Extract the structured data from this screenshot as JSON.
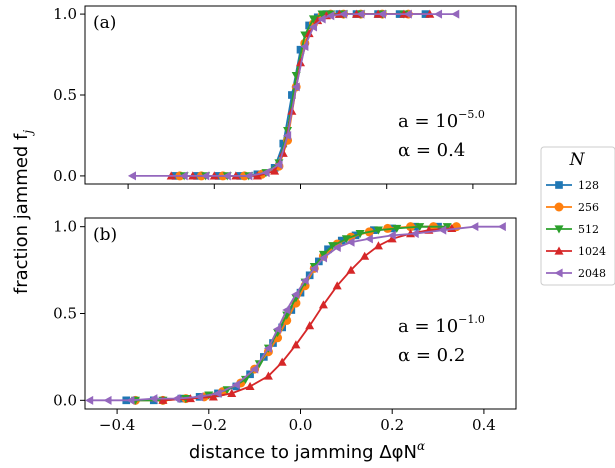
{
  "chart_data": [
    {
      "panel": "(a)",
      "type": "line",
      "xlim": [
        -0.5,
        0.5
      ],
      "ylim": [
        -0.05,
        1.05
      ],
      "yticks": [
        0.0,
        0.5,
        1.0
      ],
      "ytick_labels": [
        "0.0",
        "0.5",
        "1.0"
      ],
      "annotation": {
        "a_prefix": "a = 10",
        "a_exp": "−5.0",
        "alpha": "α = 0.4"
      },
      "series": [
        {
          "name": "128",
          "color": "#1f77b4",
          "marker": "square",
          "x": [
            -0.29,
            -0.24,
            -0.19,
            -0.14,
            -0.1,
            -0.06,
            -0.04,
            -0.02,
            0.0,
            0.02,
            0.04,
            0.06,
            0.09,
            0.13,
            0.18,
            0.23,
            0.29
          ],
          "y": [
            0.0,
            0.0,
            0.0,
            0.0,
            0.01,
            0.05,
            0.2,
            0.5,
            0.78,
            0.93,
            0.98,
            1.0,
            1.0,
            1.0,
            1.0,
            1.0,
            1.0
          ]
        },
        {
          "name": "256",
          "color": "#ff7f0e",
          "marker": "circle",
          "x": [
            -0.28,
            -0.23,
            -0.18,
            -0.13,
            -0.09,
            -0.05,
            -0.03,
            -0.01,
            0.01,
            0.03,
            0.05,
            0.07,
            0.1,
            0.14,
            0.19,
            0.25
          ],
          "y": [
            0.0,
            0.0,
            0.0,
            0.0,
            0.01,
            0.06,
            0.22,
            0.55,
            0.82,
            0.94,
            0.99,
            1.0,
            1.0,
            1.0,
            1.0,
            1.0
          ]
        },
        {
          "name": "512",
          "color": "#2ca02c",
          "marker": "triangle-down",
          "x": [
            -0.27,
            -0.22,
            -0.17,
            -0.12,
            -0.08,
            -0.05,
            -0.03,
            -0.01,
            0.01,
            0.03,
            0.05,
            0.07,
            0.1,
            0.14,
            0.19,
            0.24
          ],
          "y": [
            0.0,
            0.0,
            0.0,
            0.0,
            0.02,
            0.08,
            0.28,
            0.62,
            0.87,
            0.97,
            1.0,
            1.0,
            1.0,
            1.0,
            1.0,
            1.0
          ]
        },
        {
          "name": "1024",
          "color": "#d62728",
          "marker": "triangle-up",
          "x": [
            -0.3,
            -0.25,
            -0.2,
            -0.15,
            -0.1,
            -0.06,
            -0.04,
            -0.02,
            0.0,
            0.02,
            0.04,
            0.06,
            0.09,
            0.13,
            0.18,
            0.24,
            0.3
          ],
          "y": [
            0.0,
            0.0,
            0.0,
            0.0,
            0.0,
            0.03,
            0.14,
            0.4,
            0.7,
            0.88,
            0.96,
            0.99,
            1.0,
            1.0,
            1.0,
            1.0,
            1.0
          ]
        },
        {
          "name": "2048",
          "color": "#9467bd",
          "marker": "triangle-left",
          "x": [
            -0.39,
            -0.27,
            -0.22,
            -0.17,
            -0.12,
            -0.08,
            -0.05,
            -0.03,
            -0.01,
            0.01,
            0.03,
            0.05,
            0.07,
            0.1,
            0.14,
            0.19,
            0.25,
            0.32,
            0.36
          ],
          "y": [
            0.0,
            0.0,
            0.0,
            0.0,
            0.0,
            0.02,
            0.07,
            0.25,
            0.55,
            0.8,
            0.92,
            0.97,
            0.99,
            1.0,
            1.0,
            1.0,
            1.0,
            1.0,
            1.0
          ]
        }
      ]
    },
    {
      "panel": "(b)",
      "type": "line",
      "xlim": [
        -0.47,
        0.47
      ],
      "ylim": [
        -0.05,
        1.05
      ],
      "xticks": [
        -0.4,
        -0.2,
        0.0,
        0.2,
        0.4
      ],
      "xtick_labels": [
        "−0.4",
        "−0.2",
        "0.0",
        "0.2",
        "0.4"
      ],
      "yticks": [
        0.0,
        0.5,
        1.0
      ],
      "ytick_labels": [
        "0.0",
        "0.5",
        "1.0"
      ],
      "annotation": {
        "a_prefix": "a = 10",
        "a_exp": "−1.0",
        "alpha": "α = 0.2"
      },
      "series": [
        {
          "name": "128",
          "color": "#1f77b4",
          "marker": "square",
          "x": [
            -0.38,
            -0.32,
            -0.26,
            -0.22,
            -0.18,
            -0.14,
            -0.11,
            -0.08,
            -0.06,
            -0.04,
            -0.02,
            0.0,
            0.02,
            0.04,
            0.06,
            0.09,
            0.12,
            0.16,
            0.2,
            0.25,
            0.3
          ],
          "y": [
            0.0,
            0.0,
            0.01,
            0.02,
            0.04,
            0.08,
            0.15,
            0.25,
            0.33,
            0.42,
            0.52,
            0.62,
            0.72,
            0.8,
            0.87,
            0.92,
            0.95,
            0.98,
            0.99,
            1.0,
            1.0
          ]
        },
        {
          "name": "256",
          "color": "#ff7f0e",
          "marker": "circle",
          "x": [
            -0.36,
            -0.3,
            -0.25,
            -0.21,
            -0.17,
            -0.13,
            -0.1,
            -0.07,
            -0.05,
            -0.03,
            -0.01,
            0.01,
            0.03,
            0.05,
            0.08,
            0.11,
            0.15,
            0.19,
            0.24,
            0.29,
            0.34
          ],
          "y": [
            0.0,
            0.0,
            0.01,
            0.02,
            0.05,
            0.1,
            0.18,
            0.28,
            0.36,
            0.46,
            0.56,
            0.66,
            0.76,
            0.83,
            0.9,
            0.94,
            0.97,
            0.99,
            1.0,
            1.0,
            1.0
          ]
        },
        {
          "name": "512",
          "color": "#2ca02c",
          "marker": "triangle-down",
          "x": [
            -0.36,
            -0.3,
            -0.25,
            -0.2,
            -0.16,
            -0.12,
            -0.09,
            -0.07,
            -0.05,
            -0.03,
            -0.01,
            0.01,
            0.03,
            0.05,
            0.07,
            0.1,
            0.13,
            0.17,
            0.21,
            0.26,
            0.32
          ],
          "y": [
            0.0,
            0.0,
            0.01,
            0.03,
            0.06,
            0.12,
            0.21,
            0.3,
            0.39,
            0.49,
            0.59,
            0.68,
            0.77,
            0.84,
            0.89,
            0.93,
            0.96,
            0.98,
            0.99,
            1.0,
            1.0
          ]
        },
        {
          "name": "1024",
          "color": "#d62728",
          "marker": "triangle-up",
          "x": [
            -0.3,
            -0.24,
            -0.19,
            -0.15,
            -0.11,
            -0.07,
            -0.04,
            -0.01,
            0.02,
            0.05,
            0.08,
            0.11,
            0.14,
            0.17,
            0.2,
            0.24,
            0.28,
            0.33
          ],
          "y": [
            0.0,
            0.01,
            0.02,
            0.04,
            0.08,
            0.14,
            0.22,
            0.32,
            0.43,
            0.55,
            0.66,
            0.75,
            0.83,
            0.89,
            0.93,
            0.96,
            0.98,
            0.99
          ]
        },
        {
          "name": "2048",
          "color": "#9467bd",
          "marker": "triangle-left",
          "x": [
            -0.46,
            -0.42,
            -0.37,
            -0.32,
            -0.27,
            -0.22,
            -0.18,
            -0.14,
            -0.1,
            -0.07,
            -0.05,
            -0.03,
            -0.01,
            0.01,
            0.03,
            0.05,
            0.08,
            0.11,
            0.15,
            0.2,
            0.25,
            0.31,
            0.38,
            0.44
          ],
          "y": [
            0.0,
            0.0,
            0.0,
            0.01,
            0.01,
            0.02,
            0.04,
            0.09,
            0.18,
            0.3,
            0.41,
            0.52,
            0.61,
            0.69,
            0.76,
            0.82,
            0.88,
            0.91,
            0.93,
            0.95,
            0.96,
            0.98,
            1.0,
            1.0
          ]
        }
      ]
    }
  ],
  "ylabel": "fraction jammed f",
  "ylabel_sub": "j",
  "xlabel": "distance to jamming ΔφN",
  "xlabel_sup": "α",
  "legend": {
    "title": "N",
    "placement": "right",
    "entries": [
      "128",
      "256",
      "512",
      "1024",
      "2048"
    ]
  }
}
